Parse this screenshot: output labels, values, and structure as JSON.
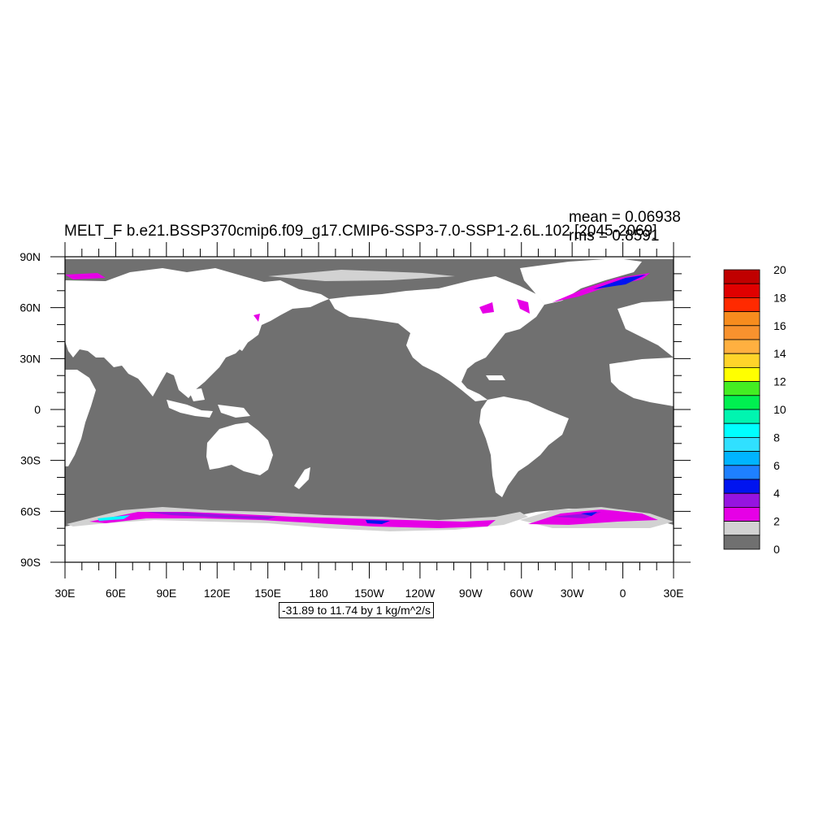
{
  "plot": {
    "title": "MELT_F b.e21.BSSP370cmip6.f09_g17.CMIP6-SSP3-7.0-SSP1-2.6L.102 [2045-2069]",
    "mean_label": "mean = 0.06938",
    "rms_label": "rms = 0.8591",
    "range_label": "-31.89 to 11.74 by 1 kg/m^2/s"
  },
  "map": {
    "projection": "cylindrical equidistant",
    "lon_range": [
      30,
      390
    ],
    "lat_range": [
      -90,
      90
    ],
    "ocean_fill": "#707070",
    "land_fill": "#ffffff",
    "lat_ticks": [
      "90N",
      "60N",
      "30N",
      "0",
      "30S",
      "60S",
      "90S"
    ],
    "lon_ticks": [
      "30E",
      "60E",
      "90E",
      "120E",
      "150E",
      "180",
      "150W",
      "120W",
      "90W",
      "60W",
      "30W",
      "0",
      "30E"
    ]
  },
  "colorbar": {
    "labels": [
      "20",
      "18",
      "16",
      "14",
      "12",
      "10",
      "8",
      "6",
      "4",
      "2",
      "0"
    ],
    "colors": [
      "#c00000",
      "#e00000",
      "#ff2a00",
      "#f78c1e",
      "#f8922e",
      "#ffb040",
      "#ffd42a",
      "#ffff00",
      "#44ee22",
      "#00f050",
      "#00f5b0",
      "#00ffff",
      "#30e0ff",
      "#00b4ff",
      "#1e80ff",
      "#0014f0",
      "#9614e0",
      "#e600e6",
      "#d2d2d2",
      "#707070"
    ]
  }
}
